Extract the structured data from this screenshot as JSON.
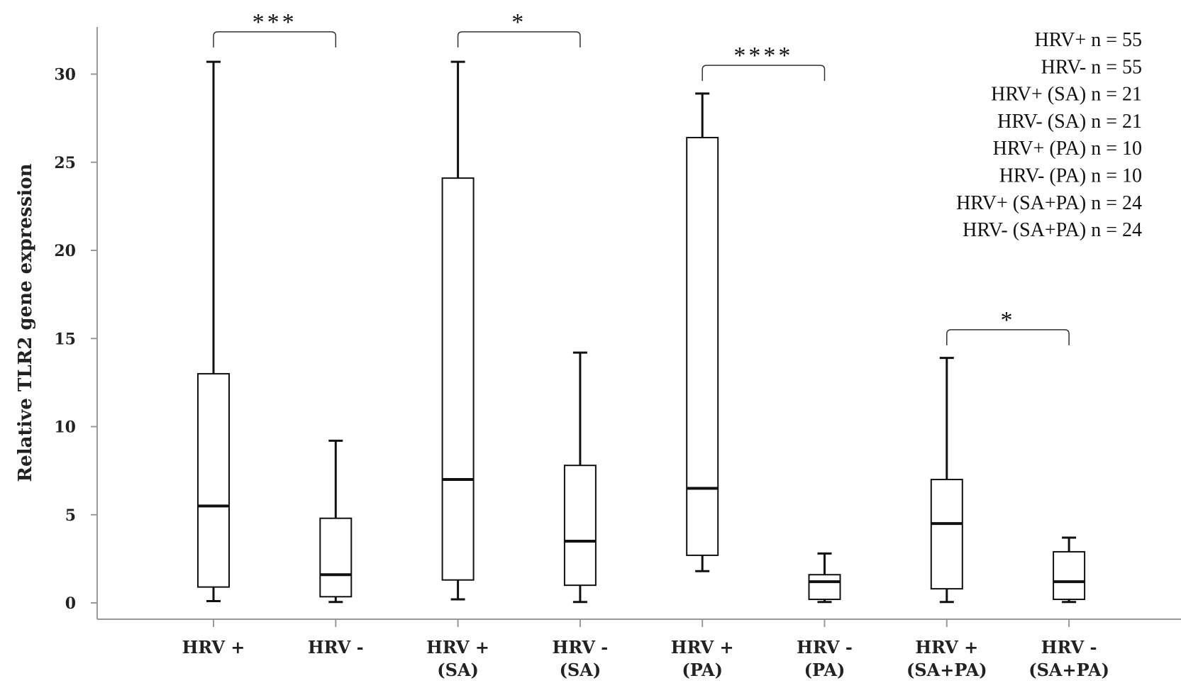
{
  "chart_data": {
    "type": "boxplot",
    "ylabel": "Relative TLR2 gene expression",
    "xlabel": "",
    "ylim": [
      -1,
      32.5
    ],
    "yticks": [
      0,
      5,
      10,
      15,
      20,
      25,
      30
    ],
    "grid": false,
    "categories": [
      [
        "HRV +"
      ],
      [
        "HRV -"
      ],
      [
        "HRV +",
        "(SA)"
      ],
      [
        "HRV -",
        "(SA)"
      ],
      [
        "HRV +",
        "(PA)"
      ],
      [
        "HRV -",
        "(PA)"
      ],
      [
        "HRV +",
        "(SA+PA)"
      ],
      [
        "HRV -",
        "(SA+PA)"
      ]
    ],
    "boxes": [
      {
        "min": 0.1,
        "q1": 0.9,
        "median": 5.5,
        "q3": 13.0,
        "max": 30.7
      },
      {
        "min": 0.05,
        "q1": 0.35,
        "median": 1.6,
        "q3": 4.8,
        "max": 9.2
      },
      {
        "min": 0.2,
        "q1": 1.3,
        "median": 7.0,
        "q3": 24.1,
        "max": 30.7
      },
      {
        "min": 0.05,
        "q1": 1.0,
        "median": 3.5,
        "q3": 7.8,
        "max": 14.2
      },
      {
        "min": 1.8,
        "q1": 2.7,
        "median": 6.5,
        "q3": 26.4,
        "max": 28.9
      },
      {
        "min": 0.05,
        "q1": 0.2,
        "median": 1.2,
        "q3": 1.6,
        "max": 2.8
      },
      {
        "min": 0.05,
        "q1": 0.8,
        "median": 4.5,
        "q3": 7.0,
        "max": 13.9
      },
      {
        "min": 0.05,
        "q1": 0.2,
        "median": 1.2,
        "q3": 2.9,
        "max": 3.7
      }
    ],
    "significance": [
      {
        "from": 0,
        "to": 1,
        "label": "***",
        "y": 32.4
      },
      {
        "from": 2,
        "to": 3,
        "label": "*",
        "y": 32.4
      },
      {
        "from": 4,
        "to": 5,
        "label": "****",
        "y": 30.5
      },
      {
        "from": 6,
        "to": 7,
        "label": "*",
        "y": 15.5
      }
    ],
    "legend_position": "top-right",
    "legend": [
      "HRV+ n = 55",
      "HRV- n = 55",
      "HRV+ (SA) n = 21",
      "HRV- (SA) n = 21",
      "HRV+ (PA) n = 10",
      "HRV- (PA) n = 10",
      "HRV+ (SA+PA) n = 24",
      "HRV- (SA+PA) n = 24"
    ]
  }
}
